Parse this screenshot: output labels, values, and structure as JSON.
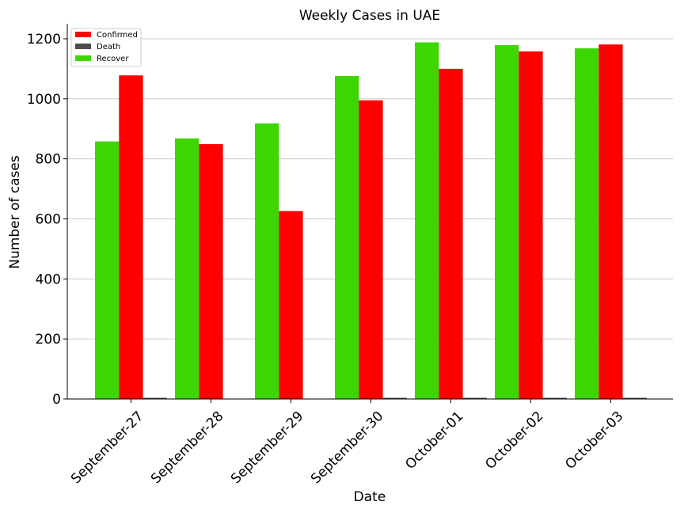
{
  "chart_data": {
    "type": "bar",
    "title": "Weekly Cases in UAE",
    "xlabel": "Date",
    "ylabel": "Number of cases",
    "categories": [
      "September-27",
      "September-28",
      "September-29",
      "September-30",
      "October-01",
      "October-02",
      "October-03"
    ],
    "ylim": [
      0,
      1250
    ],
    "yticks": [
      0,
      200,
      400,
      600,
      800,
      1000,
      1200
    ],
    "grid": "horizontal",
    "legend_position": "top-left",
    "series": [
      {
        "name": "Recover",
        "color": "#3dd600",
        "values": [
          858,
          868,
          918,
          1076,
          1188,
          1179,
          1168
        ]
      },
      {
        "name": "Confirmed",
        "color": "#ff0000",
        "values": [
          1078,
          849,
          626,
          995,
          1100,
          1158,
          1181
        ]
      },
      {
        "name": "Death",
        "color": "#4d4d4d",
        "values": [
          3,
          0,
          0,
          3,
          2,
          3,
          2
        ]
      }
    ],
    "legend_order": [
      "Confirmed",
      "Death",
      "Recover"
    ]
  }
}
